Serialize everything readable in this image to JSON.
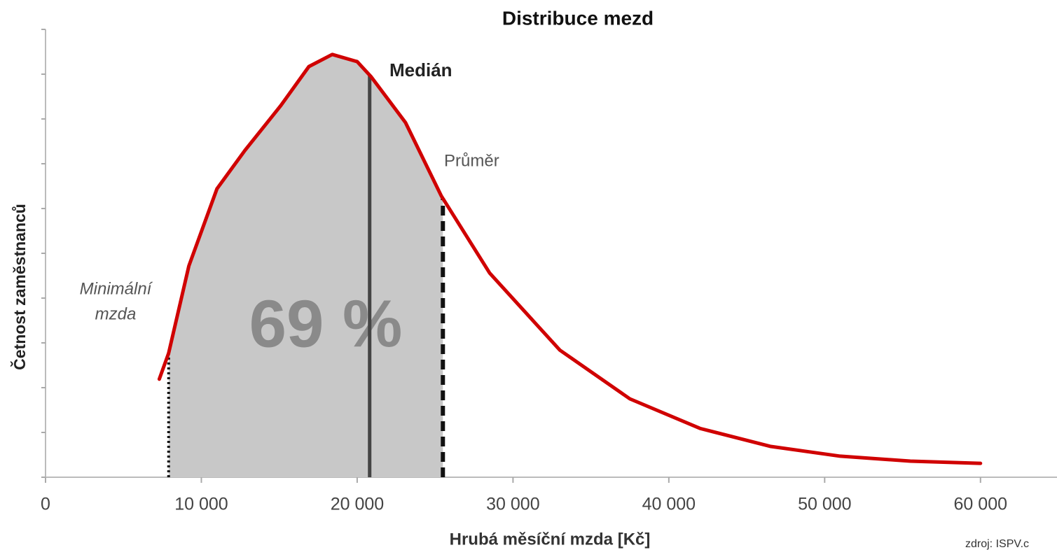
{
  "chart_data": {
    "type": "density",
    "title": "Distribuce mezd",
    "x_label": "Hrubá měsíční mzda [Kč]",
    "y_label": "Četnost zaměstnanců",
    "source": "zdroj: ISPV.c",
    "share_label": "69 %",
    "x": [
      7300,
      7900,
      9200,
      11000,
      12800,
      15100,
      16900,
      18400,
      20000,
      20900,
      23100,
      25400,
      28500,
      33000,
      37500,
      42000,
      46500,
      51000,
      55500,
      60000
    ],
    "values": [
      2.19,
      2.77,
      4.72,
      6.44,
      7.3,
      8.3,
      9.17,
      9.44,
      9.28,
      8.94,
      7.92,
      6.28,
      4.56,
      2.84,
      1.75,
      1.09,
      0.69,
      0.47,
      0.36,
      0.31
    ],
    "color": "#d00000",
    "fill_color": "#c8c8c8",
    "xlim": [
      0,
      65000
    ],
    "ylim": [
      0,
      10
    ],
    "xticks": [
      0,
      {
        "value": 10000,
        "label": "10 000"
      },
      {
        "value": 20000,
        "label": "20 000"
      },
      {
        "value": 30000,
        "label": "30 000"
      },
      {
        "value": 40000,
        "label": "40 000"
      },
      {
        "value": 50000,
        "label": "50 000"
      },
      {
        "value": 60000,
        "label": "60 000"
      }
    ],
    "yticks": [
      0,
      1,
      2,
      3,
      4,
      5,
      6,
      7,
      8,
      9,
      10
    ],
    "markers": [
      {
        "label_lines": [
          "Minimální",
          "mzda"
        ],
        "x": 7900,
        "style": "dotted"
      },
      {
        "label_lines": [
          "Medián"
        ],
        "x": 20800,
        "style": "solid"
      },
      {
        "label_lines": [
          "Průměr"
        ],
        "x": 25500,
        "style": "dashed"
      }
    ]
  }
}
